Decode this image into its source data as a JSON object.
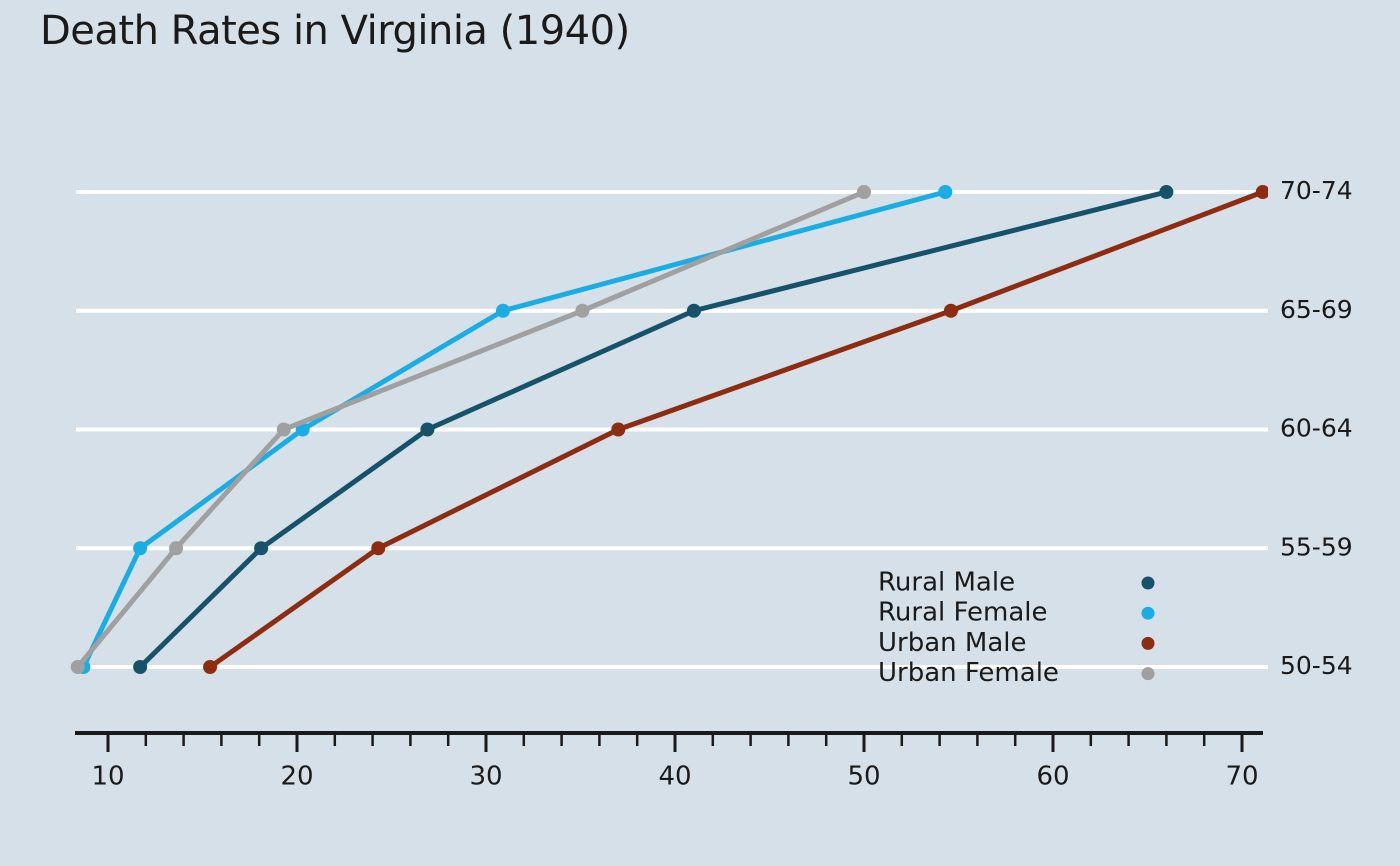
{
  "title": "Death Rates in Virginia (1940)",
  "colors": {
    "background": "#d6e0e8",
    "grid": "#ffffff",
    "axis": "#1a1a1a",
    "text": "#1a1a1a"
  },
  "chart_data": {
    "type": "line",
    "title": "Death Rates in Virginia (1940)",
    "orientation": "x-values, y-categories (category labels on right side)",
    "categories": [
      "50-54",
      "55-59",
      "60-64",
      "65-69",
      "70-74"
    ],
    "series": [
      {
        "name": "Rural Male",
        "color": "#16536b",
        "values": [
          11.7,
          18.1,
          26.9,
          41.0,
          66.0
        ]
      },
      {
        "name": "Rural Female",
        "color": "#1aade4",
        "values": [
          8.7,
          11.7,
          20.3,
          30.9,
          54.3
        ]
      },
      {
        "name": "Urban Male",
        "color": "#8e2c12",
        "values": [
          15.4,
          24.3,
          37.0,
          54.6,
          71.1
        ]
      },
      {
        "name": "Urban Female",
        "color": "#a0a0a0",
        "values": [
          8.4,
          13.6,
          19.3,
          35.1,
          50.0
        ]
      }
    ],
    "xlabel": "",
    "ylabel": "",
    "x_ticks_major": [
      10,
      20,
      30,
      40,
      50,
      60,
      70
    ],
    "x_minor_tick_step": 2,
    "xlim": [
      8.3,
      71.4
    ],
    "grid": "horizontal white gridlines only, no vertical grid, no left y-axis spine",
    "legend_position": "inside lower-right, markers to the right of labels",
    "legend": [
      "Rural Male",
      "Rural Female",
      "Urban Male",
      "Urban Female"
    ]
  }
}
